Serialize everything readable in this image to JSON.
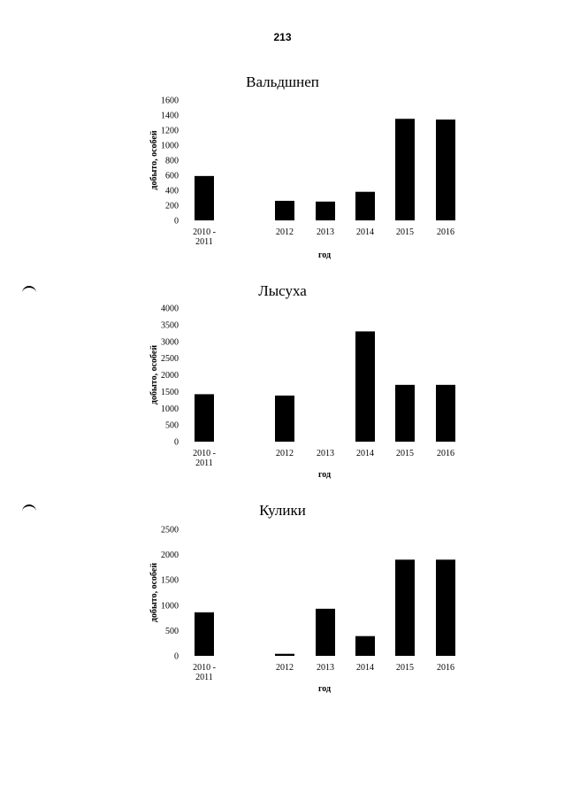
{
  "page_number": "213",
  "colors": {
    "bar": "#000000",
    "background": "#ffffff"
  },
  "chart_data": [
    {
      "type": "bar",
      "title": "Вальдшнеп",
      "ylabel": "добыто, особей",
      "xlabel": "год",
      "categories": [
        "2010 - 2011",
        "2012",
        "2013",
        "2014",
        "2015",
        "2016"
      ],
      "values": [
        590,
        260,
        250,
        380,
        1350,
        1340
      ],
      "yticks": [
        0,
        200,
        400,
        600,
        800,
        1000,
        1200,
        1400,
        1600
      ],
      "ylim": [
        0,
        1600
      ],
      "grid": false
    },
    {
      "type": "bar",
      "title": "Лысуха",
      "ylabel": "добыто, особей",
      "xlabel": "год",
      "categories": [
        "2010 - 2011",
        "2012",
        "2013",
        "2014",
        "2015",
        "2016"
      ],
      "values": [
        1420,
        1380,
        0,
        3300,
        1700,
        1700
      ],
      "yticks": [
        0,
        500,
        1000,
        1500,
        2000,
        2500,
        3000,
        3500,
        4000
      ],
      "ylim": [
        0,
        4000
      ],
      "grid": false
    },
    {
      "type": "bar",
      "title": "Кулики",
      "ylabel": "добыто, особей",
      "xlabel": "год",
      "categories": [
        "2010 - 2011",
        "2012",
        "2013",
        "2014",
        "2015",
        "2016"
      ],
      "values": [
        860,
        40,
        930,
        390,
        1900,
        1900
      ],
      "yticks": [
        0,
        500,
        1000,
        1500,
        2000,
        2500
      ],
      "ylim": [
        0,
        2500
      ],
      "grid": false
    }
  ]
}
